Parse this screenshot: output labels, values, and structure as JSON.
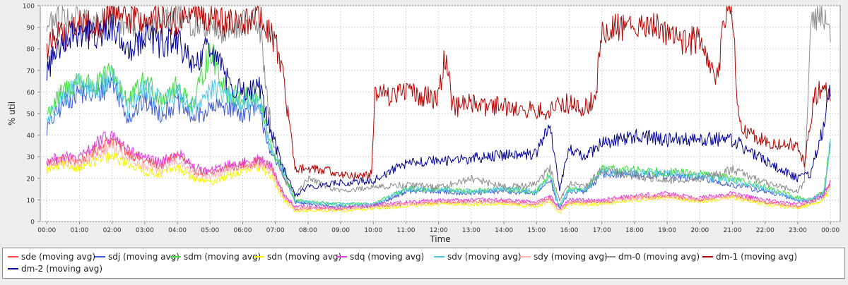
{
  "chart_data": {
    "type": "line",
    "title": "",
    "xlabel": "Time",
    "ylabel": "% util",
    "ylim": [
      0,
      100
    ],
    "yticks": [
      0,
      10,
      20,
      30,
      40,
      50,
      60,
      70,
      80,
      90,
      100
    ],
    "xlim": [
      -0.2,
      24.3
    ],
    "xticks": [
      "00:00",
      "01:00",
      "02:00",
      "03:00",
      "04:00",
      "05:00",
      "06:00",
      "07:00",
      "08:00",
      "09:00",
      "10:00",
      "11:00",
      "12:00",
      "13:00",
      "14:00",
      "15:00",
      "16:00",
      "17:00",
      "18:00",
      "19:00",
      "20:00",
      "21:00",
      "22:00",
      "23:00",
      "00:00"
    ],
    "grid": true,
    "legend_position": "bottom",
    "series": [
      {
        "name": "sde (moving avg)",
        "color": "#ff4b4b",
        "x": [
          0,
          0.5,
          1,
          1.5,
          2,
          2.5,
          3,
          3.5,
          4,
          4.5,
          5,
          5.5,
          6,
          6.5,
          6.9,
          7.25,
          7.6,
          8,
          9,
          10,
          11,
          12,
          13,
          14,
          15,
          15.4,
          15.7,
          16,
          16.5,
          17,
          18,
          19,
          20,
          21,
          22,
          23,
          23.4,
          23.8,
          24
        ],
        "y": [
          27,
          29,
          28,
          33,
          38,
          32,
          28,
          26,
          31,
          24,
          22,
          25,
          26,
          28,
          24,
          12,
          6,
          6,
          6,
          7,
          8,
          9,
          9,
          9,
          8,
          11,
          5,
          9,
          9,
          9,
          11,
          12,
          10,
          12,
          9,
          7,
          9,
          12,
          18
        ]
      },
      {
        "name": "sdj (moving avg)",
        "color": "#3d5bd9",
        "x": [
          0,
          0.5,
          1,
          1.5,
          2,
          2.5,
          3,
          3.5,
          4,
          4.5,
          5,
          5.5,
          6,
          6.5,
          6.9,
          7.25,
          7.6,
          8,
          9,
          10,
          11,
          12,
          13,
          14,
          15,
          15.4,
          15.7,
          16,
          16.5,
          17,
          18,
          19,
          20,
          21,
          22,
          23,
          23.4,
          23.8,
          24
        ],
        "y": [
          43,
          55,
          60,
          58,
          65,
          48,
          56,
          50,
          55,
          48,
          52,
          54,
          50,
          52,
          30,
          22,
          9,
          8,
          7,
          7,
          14,
          14,
          13,
          14,
          13,
          20,
          6,
          14,
          14,
          22,
          22,
          21,
          20,
          17,
          14,
          10,
          9,
          12,
          35
        ]
      },
      {
        "name": "sdm (moving avg)",
        "color": "#3ddc3d",
        "x": [
          0,
          0.5,
          1,
          1.5,
          2,
          2.5,
          3,
          3.5,
          4,
          4.5,
          5,
          5.5,
          6,
          6.5,
          6.9,
          7.25,
          7.6,
          8,
          9,
          10,
          11,
          12,
          13,
          14,
          15,
          15.4,
          15.7,
          16,
          16.5,
          17,
          18,
          19,
          20,
          21,
          22,
          23,
          23.4,
          23.8,
          24
        ],
        "y": [
          50,
          60,
          66,
          62,
          70,
          55,
          65,
          58,
          62,
          54,
          80,
          60,
          57,
          58,
          32,
          24,
          10,
          9,
          8,
          8,
          15,
          15,
          14,
          15,
          14,
          22,
          7,
          15,
          15,
          24,
          24,
          23,
          22,
          20,
          16,
          11,
          10,
          14,
          38
        ]
      },
      {
        "name": "sdn (moving avg)",
        "color": "#f5f500",
        "x": [
          0,
          0.5,
          1,
          1.5,
          2,
          2.5,
          3,
          3.5,
          4,
          4.5,
          5,
          5.5,
          6,
          6.5,
          6.9,
          7.25,
          7.6,
          8,
          9,
          10,
          11,
          12,
          13,
          14,
          15,
          15.4,
          15.7,
          16,
          16.5,
          17,
          18,
          19,
          20,
          21,
          22,
          23,
          23.4,
          23.8,
          24
        ],
        "y": [
          24,
          26,
          25,
          28,
          30,
          27,
          23,
          22,
          25,
          20,
          18,
          21,
          23,
          25,
          21,
          10,
          5,
          5,
          5,
          6,
          7,
          8,
          8,
          8,
          7,
          9,
          4,
          8,
          8,
          8,
          10,
          11,
          9,
          11,
          8,
          6,
          8,
          10,
          15
        ]
      },
      {
        "name": "sdq (moving avg)",
        "color": "#e040e0",
        "x": [
          0,
          0.5,
          1,
          1.5,
          2,
          2.5,
          3,
          3.5,
          4,
          4.5,
          5,
          5.5,
          6,
          6.5,
          6.9,
          7.25,
          7.6,
          8,
          9,
          10,
          11,
          12,
          13,
          14,
          15,
          15.4,
          15.7,
          16,
          16.5,
          17,
          18,
          19,
          20,
          21,
          22,
          23,
          23.4,
          23.8,
          24
        ],
        "y": [
          28,
          30,
          29,
          36,
          40,
          33,
          29,
          27,
          32,
          25,
          23,
          26,
          27,
          29,
          25,
          13,
          7,
          7,
          6,
          8,
          9,
          10,
          10,
          10,
          9,
          12,
          6,
          10,
          10,
          10,
          12,
          13,
          11,
          13,
          10,
          8,
          10,
          13,
          20
        ]
      },
      {
        "name": "sdv (moving avg)",
        "color": "#50c8e6",
        "x": [
          0,
          0.5,
          1,
          1.5,
          2,
          2.5,
          3,
          3.5,
          4,
          4.5,
          5,
          5.5,
          6,
          6.5,
          6.9,
          7.25,
          7.6,
          8,
          9,
          10,
          11,
          12,
          13,
          14,
          15,
          15.4,
          15.7,
          16,
          16.5,
          17,
          18,
          19,
          20,
          21,
          22,
          23,
          23.4,
          23.8,
          24
        ],
        "y": [
          47,
          58,
          63,
          60,
          68,
          52,
          62,
          55,
          60,
          52,
          62,
          58,
          55,
          56,
          31,
          23,
          9,
          9,
          8,
          8,
          15,
          15,
          14,
          15,
          14,
          21,
          7,
          15,
          15,
          23,
          23,
          22,
          21,
          19,
          15,
          10,
          10,
          13,
          36
        ]
      },
      {
        "name": "sdy (moving avg)",
        "color": "#ffb4b4",
        "x": [
          0,
          0.5,
          1,
          1.5,
          2,
          2.5,
          3,
          3.5,
          4,
          4.5,
          5,
          5.5,
          6,
          6.5,
          6.9,
          7.25,
          7.6,
          8,
          9,
          10,
          11,
          12,
          13,
          14,
          15,
          15.4,
          15.7,
          16,
          16.5,
          17,
          18,
          19,
          20,
          21,
          22,
          23,
          23.4,
          23.8,
          24
        ],
        "y": [
          26,
          28,
          27,
          31,
          35,
          30,
          26,
          24,
          28,
          22,
          21,
          24,
          25,
          27,
          23,
          11,
          6,
          6,
          6,
          7,
          8,
          9,
          9,
          9,
          8,
          10,
          5,
          9,
          9,
          9,
          11,
          12,
          10,
          12,
          9,
          7,
          9,
          11,
          17
        ]
      },
      {
        "name": "dm-0 (moving avg)",
        "color": "#8c8c8c",
        "x": [
          0,
          0.5,
          1,
          1.5,
          2,
          2.5,
          3,
          3.5,
          4,
          4.5,
          5,
          5.5,
          6,
          6.5,
          6.9,
          7.25,
          7.6,
          8,
          9,
          10,
          11,
          12,
          13,
          14,
          15,
          15.4,
          15.7,
          16,
          16.5,
          17,
          18,
          19,
          20,
          21,
          22,
          23,
          23.2,
          23.4,
          23.8,
          24
        ],
        "y": [
          90,
          96,
          92,
          90,
          95,
          92,
          88,
          90,
          96,
          92,
          90,
          88,
          93,
          92,
          40,
          20,
          12,
          20,
          14,
          16,
          17,
          16,
          20,
          16,
          17,
          25,
          10,
          18,
          16,
          24,
          21,
          19,
          20,
          24,
          18,
          14,
          18,
          95,
          96,
          90
        ]
      },
      {
        "name": "dm-1 (moving avg)",
        "color": "#b40000",
        "x": [
          0,
          0.3,
          0.6,
          1,
          1.5,
          2,
          2.5,
          3,
          3.5,
          4,
          4.5,
          5,
          5.5,
          6,
          6.5,
          6.9,
          7.1,
          7.3,
          7.6,
          8,
          8.5,
          9,
          9.5,
          9.95,
          10.05,
          10.5,
          11,
          11.5,
          12,
          12.2,
          12.4,
          12.6,
          13,
          13.5,
          14,
          14.5,
          15,
          15.3,
          15.5,
          16,
          16.5,
          16.8,
          17,
          17.5,
          18,
          18.5,
          19,
          19.5,
          20,
          20.3,
          20.5,
          20.8,
          21,
          21.2,
          21.5,
          22,
          22.5,
          23,
          23.2,
          23.5,
          23.8,
          24
        ],
        "y": [
          79,
          88,
          86,
          92,
          90,
          96,
          94,
          93,
          94,
          92,
          97,
          95,
          91,
          93,
          95,
          85,
          78,
          60,
          25,
          24,
          24,
          22,
          21,
          22,
          60,
          58,
          61,
          58,
          57,
          79,
          55,
          53,
          55,
          53,
          54,
          52,
          52,
          50,
          52,
          55,
          53,
          58,
          86,
          90,
          90,
          91,
          88,
          84,
          84,
          76,
          63,
          99,
          99,
          45,
          40,
          38,
          35,
          36,
          27,
          58,
          62,
          55
        ]
      },
      {
        "name": "dm-2 (moving avg)",
        "color": "#000099",
        "x": [
          0,
          0.5,
          1,
          1.5,
          2,
          2.5,
          3,
          3.5,
          4,
          4.5,
          5,
          5.5,
          6,
          6.5,
          6.9,
          7.25,
          7.6,
          8,
          9,
          10,
          11,
          12,
          13,
          14,
          15,
          15.4,
          15.7,
          16,
          16.5,
          17,
          18,
          19,
          20,
          21,
          22,
          23,
          23.4,
          23.8,
          24
        ],
        "y": [
          70,
          85,
          88,
          86,
          90,
          80,
          86,
          82,
          84,
          70,
          82,
          66,
          60,
          62,
          40,
          25,
          12,
          16,
          18,
          19,
          27,
          28,
          29,
          31,
          31,
          45,
          15,
          33,
          30,
          36,
          40,
          38,
          38,
          38,
          28,
          20,
          22,
          45,
          62
        ]
      }
    ]
  }
}
